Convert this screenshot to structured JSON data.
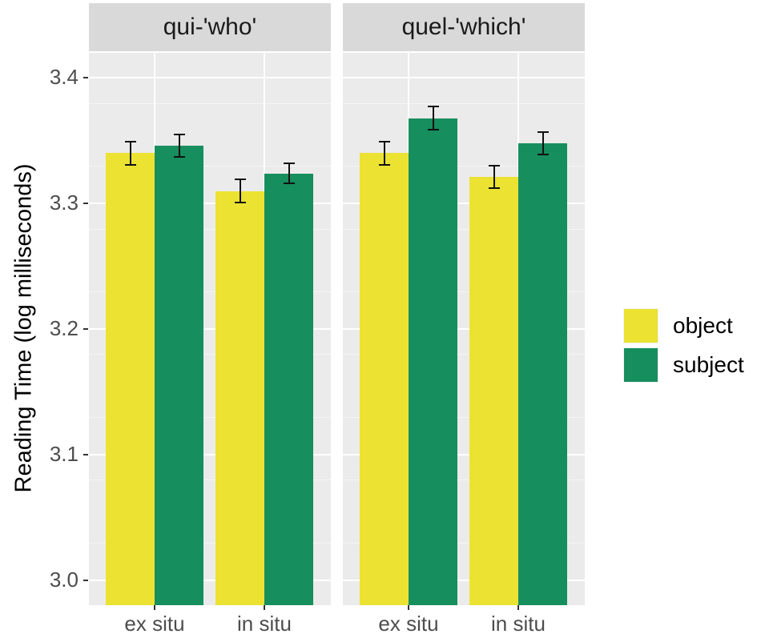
{
  "chart_data": {
    "type": "bar",
    "layout": "faceted grouped bar with error bars",
    "title": "",
    "xlabel": "",
    "ylabel": "Reading Time (log milliseconds)",
    "ylim": [
      2.98,
      3.42
    ],
    "yticks": [
      3.0,
      3.1,
      3.2,
      3.3,
      3.4
    ],
    "ytick_labels": [
      "3.0",
      "3.1",
      "3.2",
      "3.3",
      "3.4"
    ],
    "grid": true,
    "legend_position": "right",
    "legend": [
      {
        "label": "object",
        "color": "#ebe232"
      },
      {
        "label": "subject",
        "color": "#168e5e"
      }
    ],
    "categories": [
      "ex situ",
      "in situ"
    ],
    "facets": [
      {
        "label": "qui-'who'",
        "series": [
          {
            "name": "object",
            "values": [
              3.34,
              3.31
            ],
            "error": [
              0.009,
              0.009
            ]
          },
          {
            "name": "subject",
            "values": [
              3.346,
              3.324
            ],
            "error": [
              0.009,
              0.008
            ]
          }
        ]
      },
      {
        "label": "quel-'which'",
        "series": [
          {
            "name": "object",
            "values": [
              3.34,
              3.321
            ],
            "error": [
              0.009,
              0.009
            ]
          },
          {
            "name": "subject",
            "values": [
              3.368,
              3.348
            ],
            "error": [
              0.009,
              0.009
            ]
          }
        ]
      }
    ]
  }
}
